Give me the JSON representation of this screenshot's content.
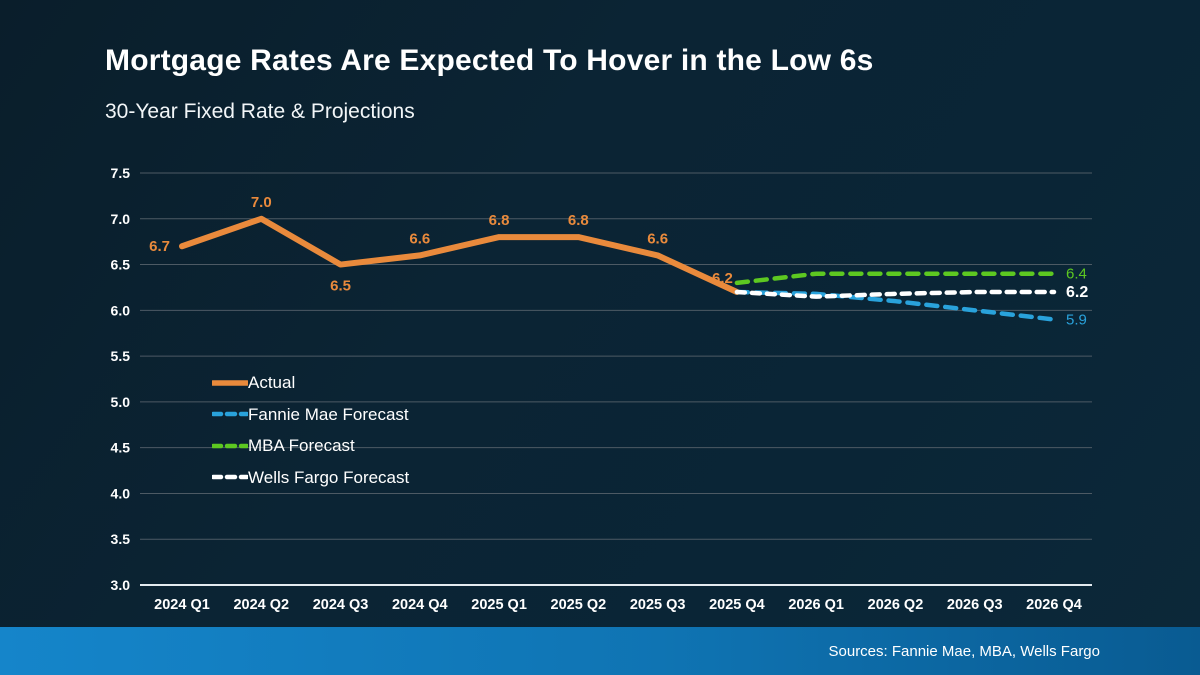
{
  "title": "Mortgage Rates Are Expected To Hover in the Low 6s",
  "subtitle": "30-Year Fixed Rate & Projections",
  "source": "Sources: Fannie Mae, MBA, Wells Fargo",
  "colors": {
    "background": "#0a2536",
    "actual": "#E98A3C",
    "fannie_mae": "#29A2DB",
    "mba": "#5DC821",
    "wells_fargo": "#FFFFFF",
    "gridline": "#4d5a64",
    "axis_line": "#e4ebf0",
    "source_bar_left": "#1585ca",
    "source_bar_right": "#095b92"
  },
  "chart_data": {
    "type": "line",
    "title": "30-Year Fixed Rate & Projections",
    "categories": [
      "2024 Q1",
      "2024 Q2",
      "2024 Q3",
      "2024 Q4",
      "2025 Q1",
      "2025 Q2",
      "2025 Q3",
      "2025 Q4",
      "2026 Q1",
      "2026 Q2",
      "2026 Q3",
      "2026 Q4"
    ],
    "ylim": [
      3.0,
      7.5
    ],
    "ytick_step": 0.5,
    "yticks": [
      "7.5",
      "7.0",
      "6.5",
      "6.0",
      "5.5",
      "5.0",
      "4.5",
      "4.0",
      "3.5",
      "3.0"
    ],
    "grid": true,
    "legend_position": "inside-left",
    "series": [
      {
        "name": "Actual",
        "style": "solid",
        "color": "#E98A3C",
        "start_index": 0,
        "values": [
          6.7,
          7.0,
          6.5,
          6.6,
          6.8,
          6.8,
          6.6,
          6.2
        ],
        "point_labels": [
          "6.7",
          "7.0",
          "6.5",
          "6.6",
          "6.8",
          "6.8",
          "6.6",
          "6.2"
        ]
      },
      {
        "name": "Fannie Mae Forecast",
        "style": "dashed",
        "color": "#29A2DB",
        "start_index": 7,
        "values": [
          6.2,
          6.18,
          6.1,
          6.0,
          5.9
        ],
        "end_label": "5.9"
      },
      {
        "name": "MBA Forecast",
        "style": "dashed",
        "color": "#5DC821",
        "start_index": 7,
        "values": [
          6.3,
          6.4,
          6.4,
          6.4,
          6.4
        ],
        "end_label": "6.4"
      },
      {
        "name": "Wells Fargo Forecast",
        "style": "dashed",
        "color": "#FFFFFF",
        "start_index": 7,
        "values": [
          6.2,
          6.15,
          6.18,
          6.2,
          6.2
        ],
        "end_label": "6.2"
      }
    ]
  }
}
